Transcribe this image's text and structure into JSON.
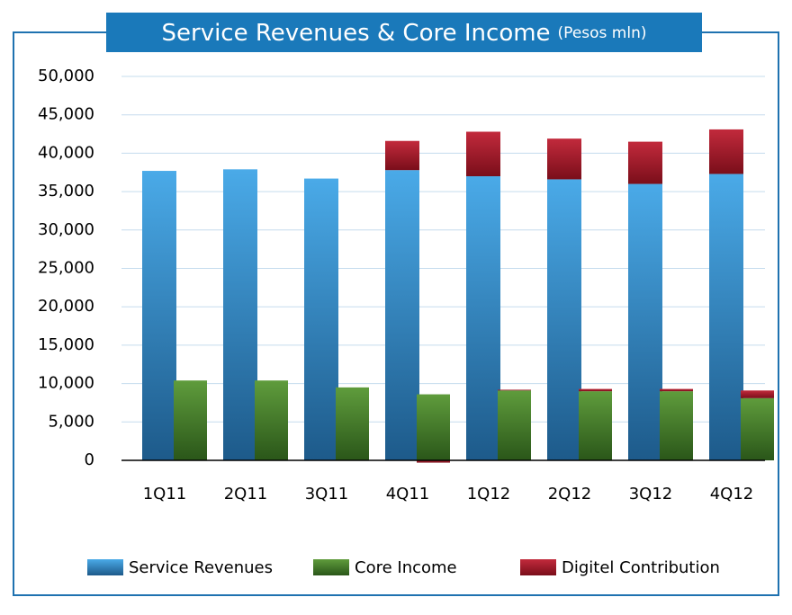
{
  "chart_data": {
    "type": "stacked_bar",
    "title": "Service Revenues & Core Income",
    "subtitle": "(Pesos mln)",
    "categories": [
      "1Q11",
      "2Q11",
      "3Q11",
      "4Q11",
      "1Q12",
      "2Q12",
      "3Q12",
      "4Q12"
    ],
    "series": [
      {
        "name": "Service Revenues",
        "color": "#3a90d0",
        "values": [
          37700,
          37900,
          36700,
          37800,
          37000,
          36600,
          36000,
          37300
        ]
      },
      {
        "name": "Core Income",
        "color": "#4a8a30",
        "values": [
          10400,
          10400,
          9500,
          8600,
          9100,
          9000,
          9000,
          8100
        ]
      },
      {
        "name": "Digitel Contribution",
        "color": "#a81c2c",
        "values": [
          null,
          null,
          null,
          3800,
          5800,
          5300,
          5500,
          5800
        ],
        "core_income_values": [
          null,
          null,
          null,
          -300,
          100,
          300,
          300,
          1000
        ]
      }
    ],
    "ylim": [
      0,
      50000
    ],
    "yticks": [
      0,
      {
        "value": 5000,
        "label": "5,000"
      },
      {
        "value": 10000,
        "label": "10,000"
      },
      {
        "value": 15000,
        "label": "15,000"
      },
      {
        "value": 20000,
        "label": "20,000"
      },
      {
        "value": 25000,
        "label": "25,000"
      },
      {
        "value": 30000,
        "label": "30,000"
      },
      {
        "value": 35000,
        "label": "35,000"
      },
      {
        "value": 40000,
        "label": "40,000"
      },
      {
        "value": 45000,
        "label": "45,000"
      },
      {
        "value": 50000,
        "label": "50,000"
      }
    ],
    "grid": true,
    "legend": "bottom"
  }
}
